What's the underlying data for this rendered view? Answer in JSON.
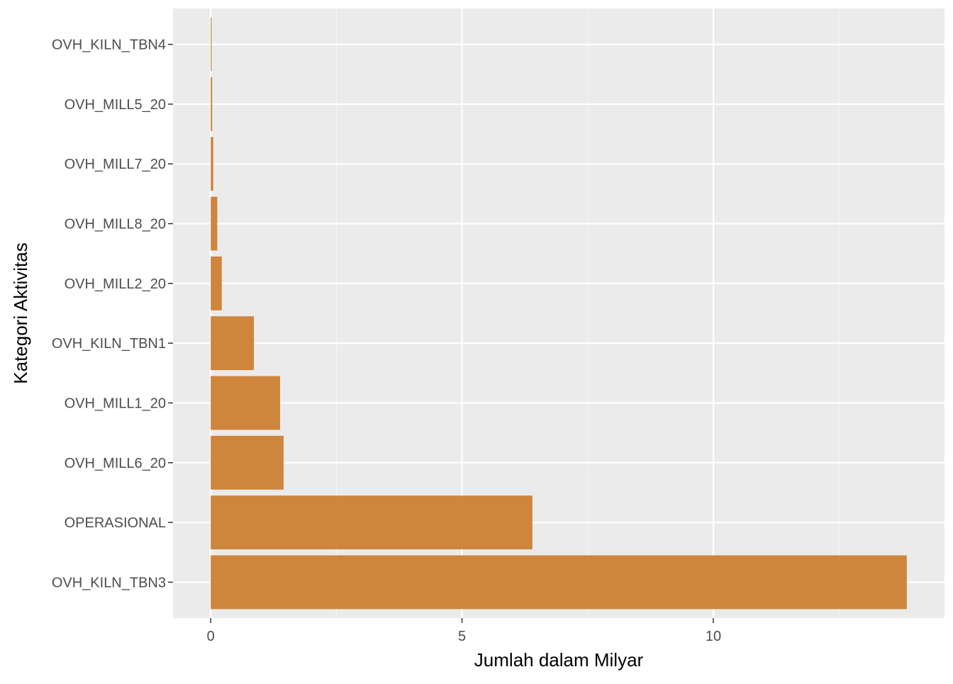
{
  "chart_data": {
    "type": "bar",
    "orientation": "horizontal",
    "title": "",
    "xlabel": "Jumlah dalam Milyar",
    "ylabel": "Kategori Aktivitas",
    "categories": [
      "OVH_KILN_TBN3",
      "OPERASIONAL",
      "OVH_MILL6_20",
      "OVH_MILL1_20",
      "OVH_KILN_TBN1",
      "OVH_MILL2_20",
      "OVH_MILL8_20",
      "OVH_MILL7_20",
      "OVH_MILL5_20",
      "OVH_KILN_TBN4"
    ],
    "values": [
      13.85,
      6.4,
      1.45,
      1.38,
      0.86,
      0.22,
      0.13,
      0.05,
      0.03,
      0.015
    ],
    "xlim": [
      -0.75,
      14.6
    ],
    "x_major_ticks": [
      0,
      5,
      10
    ],
    "x_minor_ticks": [
      2.5,
      7.5,
      12.5
    ],
    "grid": true,
    "legend": "none",
    "colors": {
      "bar": "#CC8033",
      "panel_background": "#EBEBEB",
      "grid_major": "#FFFFFF",
      "grid_minor": "#F7F7F7",
      "tick_text": "#4D4D4D",
      "tick_mark": "#333333"
    }
  }
}
